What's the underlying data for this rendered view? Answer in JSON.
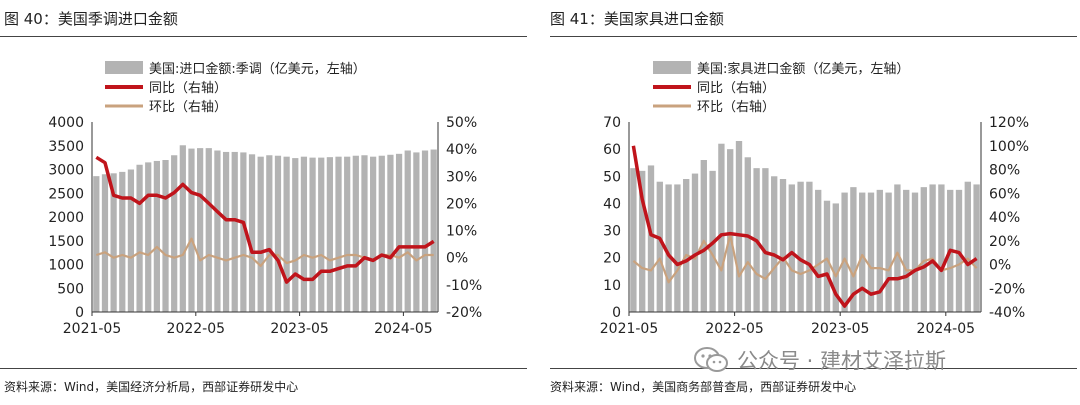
{
  "left_panel": {
    "title": "图 40：美国季调进口金额",
    "source": "资料来源：Wind，美国经济分析局，西部证券研发中心"
  },
  "right_panel": {
    "title": "图 41：美国家具进口金额",
    "source": "资料来源：Wind，美国商务部普查局，西部证券研发中心"
  },
  "watermark": {
    "text": "公众号 · 建材艾泽拉斯",
    "icon": "wechat-icon"
  },
  "colors": {
    "bar": "#b3b3b3",
    "yoy": "#c0141b",
    "mom": "#c9a27e",
    "rule": "#444444"
  },
  "chart_data": [
    {
      "type": "bar+line",
      "title": "图 40：美国季调进口金额",
      "x_tick_labels": [
        "2021-05",
        "2022-05",
        "2023-05",
        "2024-05"
      ],
      "x_tick_index": [
        0,
        12,
        24,
        36
      ],
      "left_axis": {
        "min": 0,
        "max": 4000,
        "step": 500,
        "ticks": [
          "0",
          "500",
          "1000",
          "1500",
          "2000",
          "2500",
          "3000",
          "3500",
          "4000"
        ]
      },
      "right_axis": {
        "min": -20,
        "max": 50,
        "step": 10,
        "ticks": [
          "-20%",
          "-10%",
          "0%",
          "10%",
          "20%",
          "30%",
          "40%",
          "50%"
        ]
      },
      "legend": [
        "美国:进口金额:季调（亿美元，左轴）",
        "同比（右轴）",
        "环比（右轴）"
      ],
      "series": [
        {
          "name": "美国:进口金额:季调（亿美元，左轴）",
          "type": "bar",
          "axis": "left",
          "values": [
            2860,
            2900,
            2920,
            2950,
            3000,
            3100,
            3150,
            3180,
            3200,
            3300,
            3510,
            3440,
            3450,
            3450,
            3400,
            3370,
            3370,
            3360,
            3320,
            3270,
            3300,
            3290,
            3270,
            3240,
            3270,
            3250,
            3250,
            3260,
            3270,
            3270,
            3290,
            3300,
            3270,
            3290,
            3310,
            3330,
            3400,
            3360,
            3400,
            3420
          ]
        },
        {
          "name": "同比（右轴）",
          "type": "line",
          "axis": "right",
          "values": [
            37,
            35,
            23,
            22,
            22,
            20,
            23,
            23,
            22,
            24,
            27,
            24,
            23,
            20,
            17,
            14,
            14,
            13,
            2,
            2,
            3,
            -1,
            -9,
            -6,
            -8,
            -8,
            -5,
            -5,
            -4,
            -3,
            -3,
            0,
            -1,
            1,
            0,
            4,
            4,
            4,
            4,
            6
          ]
        },
        {
          "name": "环比（右轴）",
          "type": "line",
          "axis": "right",
          "values": [
            1,
            2,
            0,
            1,
            0,
            2,
            1,
            4,
            1,
            0,
            1,
            7,
            -1,
            1,
            0,
            -1,
            0,
            1,
            0,
            -3,
            1,
            1,
            -2,
            -1,
            1,
            0,
            1,
            -1,
            0,
            1,
            1,
            0,
            -1,
            1,
            1,
            0,
            2,
            -1,
            1,
            1
          ]
        }
      ]
    },
    {
      "type": "bar+line",
      "title": "图 41：美国家具进口金额",
      "x_tick_labels": [
        "2021-05",
        "2022-05",
        "2023-05",
        "2024-05"
      ],
      "x_tick_index": [
        0,
        12,
        24,
        36
      ],
      "left_axis": {
        "min": 0,
        "max": 70,
        "step": 10,
        "ticks": [
          "0",
          "10",
          "20",
          "30",
          "40",
          "50",
          "60",
          "70"
        ]
      },
      "right_axis": {
        "min": -40,
        "max": 120,
        "step": 20,
        "ticks": [
          "-40%",
          "-20%",
          "0%",
          "20%",
          "40%",
          "60%",
          "80%",
          "100%",
          "120%"
        ]
      },
      "legend": [
        "美国:家具进口金额（亿美元，左轴）",
        "同比（右轴）",
        "环比（右轴）"
      ],
      "series": [
        {
          "name": "美国:家具进口金额（亿美元，左轴）",
          "type": "bar",
          "axis": "left",
          "values": [
            53,
            52,
            54,
            48,
            47,
            47,
            49,
            51,
            56,
            52,
            62,
            60,
            63,
            57,
            53,
            53,
            50,
            49,
            47,
            48,
            48,
            45,
            41,
            40,
            44,
            46,
            44,
            44,
            45,
            44,
            47,
            45,
            44,
            46,
            47,
            47,
            45,
            45,
            48,
            47
          ]
        },
        {
          "name": "同比（右轴）",
          "type": "line",
          "axis": "right",
          "values": [
            100,
            55,
            25,
            22,
            8,
            0,
            3,
            8,
            12,
            18,
            25,
            26,
            25,
            24,
            20,
            10,
            8,
            4,
            10,
            4,
            0,
            -10,
            -8,
            -25,
            -35,
            -25,
            -20,
            -25,
            -23,
            -12,
            -12,
            -10,
            -5,
            -2,
            3,
            -5,
            12,
            10,
            0,
            5
          ]
        },
        {
          "name": "环比（右轴）",
          "type": "line",
          "axis": "right",
          "values": [
            3,
            -3,
            -5,
            5,
            -15,
            -5,
            8,
            5,
            20,
            8,
            -5,
            25,
            -10,
            2,
            -8,
            -12,
            -3,
            6,
            -5,
            -8,
            -5,
            0,
            5,
            -10,
            5,
            -10,
            8,
            -3,
            -3,
            -5,
            10,
            -5,
            -5,
            3,
            5,
            -5,
            -3,
            0,
            5,
            -3
          ]
        }
      ]
    }
  ]
}
